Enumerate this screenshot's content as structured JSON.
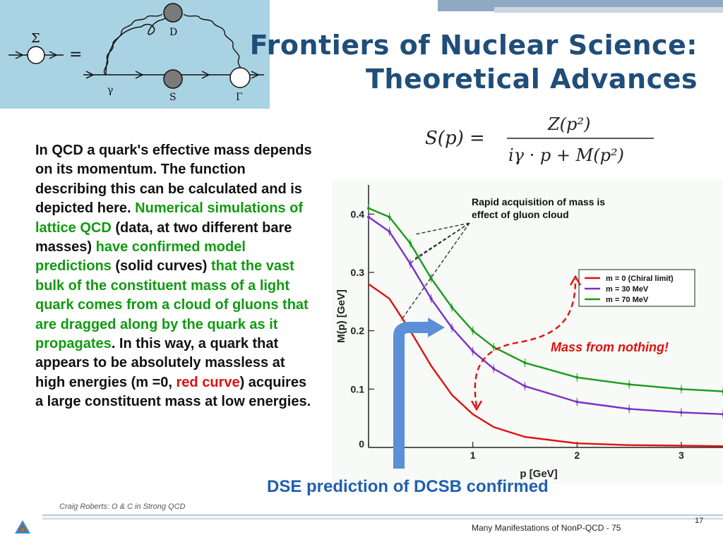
{
  "slide": {
    "title_line1": "Frontiers of Nuclear Science:",
    "title_line2": "Theoretical Advances",
    "footer_author": "Craig Roberts: O & C in Strong QCD",
    "footer_title": "Many Manifestations of NonP-QCD - 75",
    "page_number": "17",
    "dse_caption": "DSE prediction of DCSB confirmed",
    "mass_from_nothing": "Mass from nothing!",
    "colors": {
      "title": "#1f4e79",
      "green": "#119a11",
      "red": "#e01010",
      "purple": "#7b2fc8",
      "blue_arrow": "#5b8fd6",
      "diagram_bg": "#a9d3e3"
    }
  },
  "body": {
    "p1": "In QCD a quark's effective mass depends on its momentum. The function describing this can be calculated and is depicted here. ",
    "p2_green": "Numerical simulations of lattice QCD",
    "p3": " (data, at two different bare masses) ",
    "p4_green": "have confirmed model predictions",
    "p5": " (solid curves) ",
    "p6_green": "that the vast bulk of the constituent mass of a light quark comes from a cloud of gluons that are dragged along by the quark as it propagates",
    "p7": ". In this way, a quark that appears to be absolutely massless at high energies (m =0, ",
    "p8_red": "red curve",
    "p9": ") acquires a large constituent mass at low energies."
  },
  "diagram": {
    "sigma": "Σ",
    "equals": "=",
    "D": "D",
    "gamma": "γ",
    "S": "S",
    "Gamma": "Γ"
  },
  "formula": {
    "lhs": "S(p) =",
    "numerator": "Z(p²)",
    "denominator": "iγ · p + M(p²)"
  },
  "chart_data": {
    "type": "line",
    "xlabel": "p [GeV]",
    "ylabel": "M(p) [GeV]",
    "xlim": [
      0,
      3.4
    ],
    "ylim": [
      0,
      0.45
    ],
    "xticks": [
      0,
      1,
      2,
      3
    ],
    "yticks": [
      0.1,
      0.2,
      0.3,
      0.4
    ],
    "annotation": "Rapid acquisition of mass is effect of gluon cloud",
    "legend_position": "right",
    "series": [
      {
        "name": "m = 0 (Chiral limit)",
        "color": "#e01010",
        "x": [
          0,
          0.2,
          0.4,
          0.6,
          0.8,
          1.0,
          1.2,
          1.5,
          2.0,
          2.5,
          3.0,
          3.4
        ],
        "values": [
          0.28,
          0.255,
          0.2,
          0.14,
          0.09,
          0.057,
          0.035,
          0.018,
          0.007,
          0.004,
          0.003,
          0.002
        ]
      },
      {
        "name": "m = 30 MeV",
        "color": "#7b2fc8",
        "x": [
          0,
          0.2,
          0.4,
          0.6,
          0.8,
          1.0,
          1.2,
          1.5,
          2.0,
          2.5,
          3.0,
          3.4
        ],
        "values": [
          0.395,
          0.37,
          0.315,
          0.255,
          0.205,
          0.165,
          0.135,
          0.105,
          0.078,
          0.066,
          0.06,
          0.057
        ]
      },
      {
        "name": "m = 70 MeV",
        "color": "#1a9a1a",
        "x": [
          0,
          0.2,
          0.4,
          0.6,
          0.8,
          1.0,
          1.2,
          1.5,
          2.0,
          2.5,
          3.0,
          3.4
        ],
        "values": [
          0.41,
          0.395,
          0.35,
          0.29,
          0.24,
          0.2,
          0.172,
          0.145,
          0.12,
          0.108,
          0.1,
          0.096
        ]
      }
    ]
  }
}
